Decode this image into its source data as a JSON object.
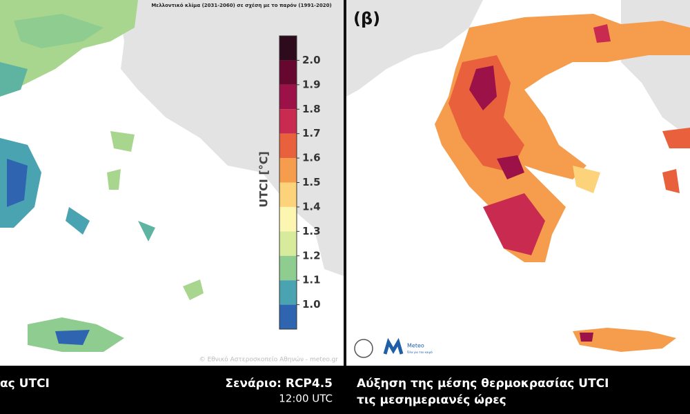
{
  "header": {
    "title": "Μελλοντικό κλίμα (2031-2060) σε σχέση με το παρόν (1991-2020)",
    "panel_label": "(β)",
    "credit": "© Εθνικό Αστεροσκοπείο Αθηνών - meteo.gr"
  },
  "legend": {
    "label": "UTCI [°C]",
    "colors": [
      "#2d0a1c",
      "#65072f",
      "#9c1148",
      "#c92a50",
      "#e9603c",
      "#f59d4d",
      "#fcd27a",
      "#fdf6b0",
      "#d8eb9c",
      "#8fcc8f",
      "#4aa3b0",
      "#2e64b0"
    ],
    "ticks": [
      {
        "value": 2,
        "label": "2.0"
      },
      1.9,
      1.8,
      1.7,
      1.6,
      1.5,
      1.4,
      1.3,
      1.2,
      1.1,
      {
        "value": 1,
        "label": "1.0"
      }
    ]
  },
  "footer": {
    "left_title": "ας UTCI",
    "scenario": "Σενάριο: RCP4.5",
    "time": "12:00 UTC",
    "right_title_1": "Αύξηση της μέσης θερμοκρασίας UTCI",
    "right_title_2": "τις μεσημεριανές ώρες"
  },
  "logos": {
    "meteo": "Meteo",
    "meteo_tag": "Όλα για τον καιρό"
  }
}
